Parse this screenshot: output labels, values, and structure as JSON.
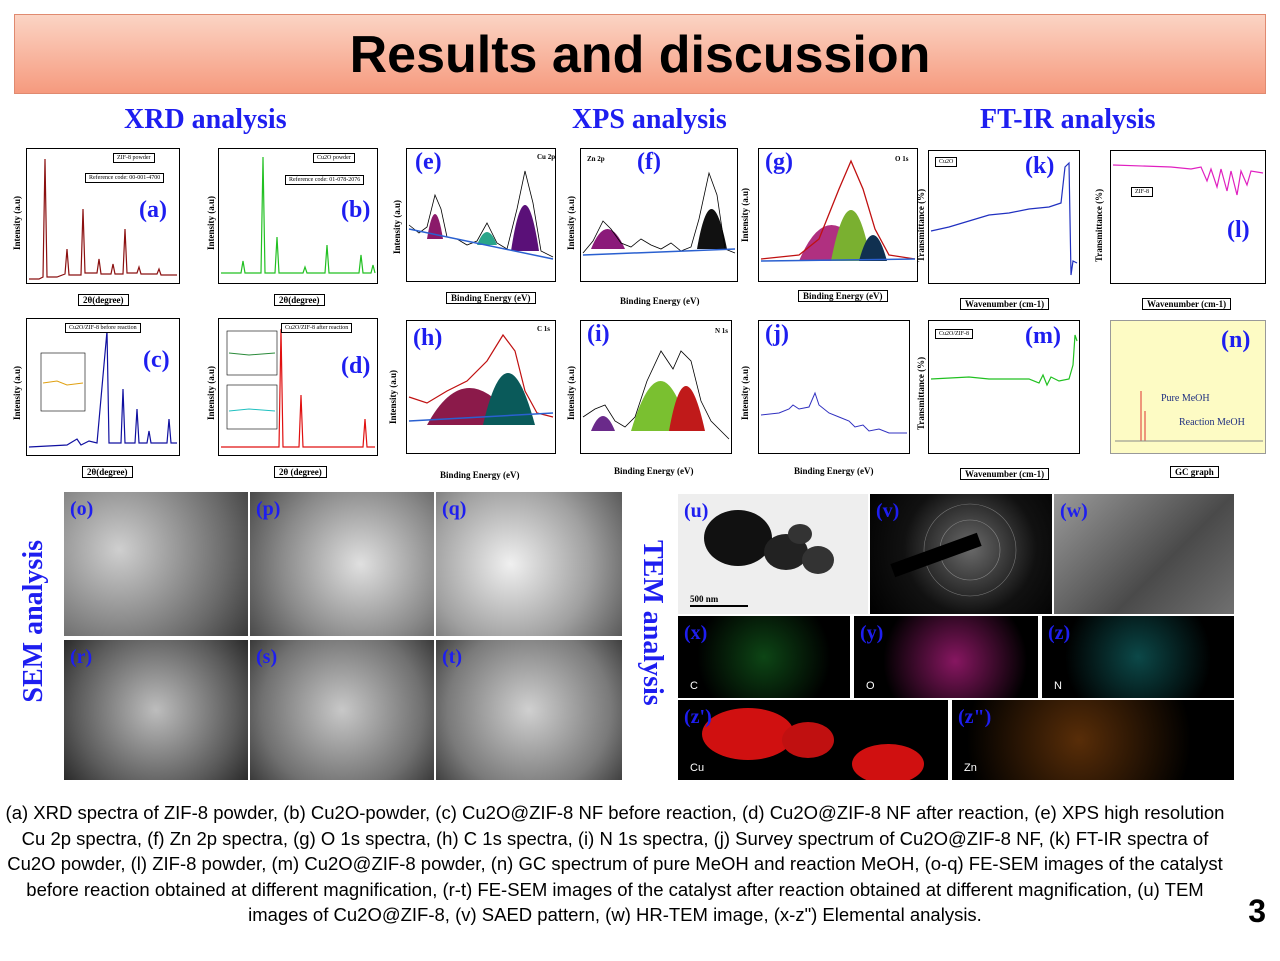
{
  "title": "Results and discussion",
  "sections": {
    "xrd": "XRD analysis",
    "xps": "XPS analysis",
    "ftir": "FT-IR analysis",
    "sem": "SEM analysis",
    "tem": "TEM analysis"
  },
  "panels": {
    "a": {
      "label": "(a)",
      "legend": "ZIF-8 powder",
      "ref": "Reference code: 00-001-4700",
      "ylabel": "Intensity (a.u)",
      "xlabel": "2θ(degree)"
    },
    "b": {
      "label": "(b)",
      "legend": "Cu2O powder",
      "ref": "Reference code: 01-078-2076",
      "ylabel": "Intensity (a.u)",
      "xlabel": "2θ(degree)"
    },
    "c": {
      "label": "(c)",
      "legend": "Cu2O/ZIF-8 before reaction",
      "ylabel": "Intensity (a.u)",
      "xlabel": "2θ(degree)"
    },
    "d": {
      "label": "(d)",
      "legend": "Cu2O/ZIF-8 after reaction",
      "ylabel": "Intensity (a.u)",
      "xlabel": "2θ (degree)"
    },
    "e": {
      "label": "(e)",
      "tag": "Cu 2p",
      "ylabel": "Intensity (a.u)",
      "xlabel": "Binding Energy (eV)"
    },
    "f": {
      "label": "(f)",
      "tag": "Zn 2p",
      "ylabel": "Intensity (a.u)",
      "xlabel": "Binding Energy (eV)"
    },
    "g": {
      "label": "(g)",
      "tag": "O 1s",
      "ylabel": "Intensity (a.u)",
      "xlabel": "Binding Energy (eV)"
    },
    "h": {
      "label": "(h)",
      "tag": "C 1s",
      "ylabel": "Intensity (a.u)",
      "xlabel": "Binding Energy (eV)"
    },
    "i": {
      "label": "(i)",
      "tag": "N 1s",
      "ylabel": "Intensity (a.u)",
      "xlabel": "Binding Energy (eV)"
    },
    "j": {
      "label": "(j)",
      "ylabel": "Intensity (a.u)",
      "xlabel": "Binding Energy (eV)"
    },
    "k": {
      "label": "(k)",
      "legend": "Cu2O",
      "ylabel": "Transmittance (%)",
      "xlabel": "Wavenumber (cm-1)"
    },
    "l": {
      "label": "(l)",
      "legend": "ZIF-8",
      "ylabel": "Transmittance (%)",
      "xlabel": "Wavenumber (cm-1)"
    },
    "m": {
      "label": "(m)",
      "legend": "Cu2O/ZIF-8",
      "ylabel": "Transmittance (%)",
      "xlabel": "Wavenumber (cm-1)"
    },
    "n": {
      "label": "(n)",
      "pure": "Pure MeOH",
      "reaction": "Reaction MeOH",
      "xlabel": "GC graph"
    }
  },
  "sem_images": [
    "(o)",
    "(p)",
    "(q)",
    "(r)",
    "(s)",
    "(t)"
  ],
  "tem_images": {
    "u": "(u)",
    "v": "(v)",
    "w": "(w)",
    "scale": "500 nm"
  },
  "maps": [
    {
      "label": "(x)",
      "element": "C",
      "color": "#1a8a2a"
    },
    {
      "label": "(y)",
      "element": "O",
      "color": "#c0208a"
    },
    {
      "label": "(z)",
      "element": "N",
      "color": "#1aa0a0"
    },
    {
      "label": "(z')",
      "element": "Cu",
      "color": "#e01010"
    },
    {
      "label": "(z\")",
      "element": "Zn",
      "color": "#b05a10"
    }
  ],
  "caption": "(a) XRD spectra of ZIF-8 powder, (b) Cu2O-powder, (c) Cu2O@ZIF-8 NF before reaction, (d) Cu2O@ZIF-8 NF after reaction, (e) XPS high resolution Cu 2p spectra, (f) Zn 2p spectra, (g) O 1s spectra, (h) C 1s spectra, (i) N 1s spectra, (j) Survey spectrum of Cu2O@ZIF-8 NF, (k) FT-IR spectra of Cu2O powder, (l) ZIF-8 powder, (m) Cu2O@ZIF-8 powder, (n) GC spectrum of pure MeOH and reaction MeOH, (o-q) FE-SEM images of the catalyst before reaction obtained at different magnification, (r-t) FE-SEM images of the catalyst after reaction obtained at different magnification, (u) TEM images of Cu2O@ZIF-8, (v) SAED pattern, (w) HR-TEM image, (x-z\") Elemental analysis.",
  "page_number": "3"
}
